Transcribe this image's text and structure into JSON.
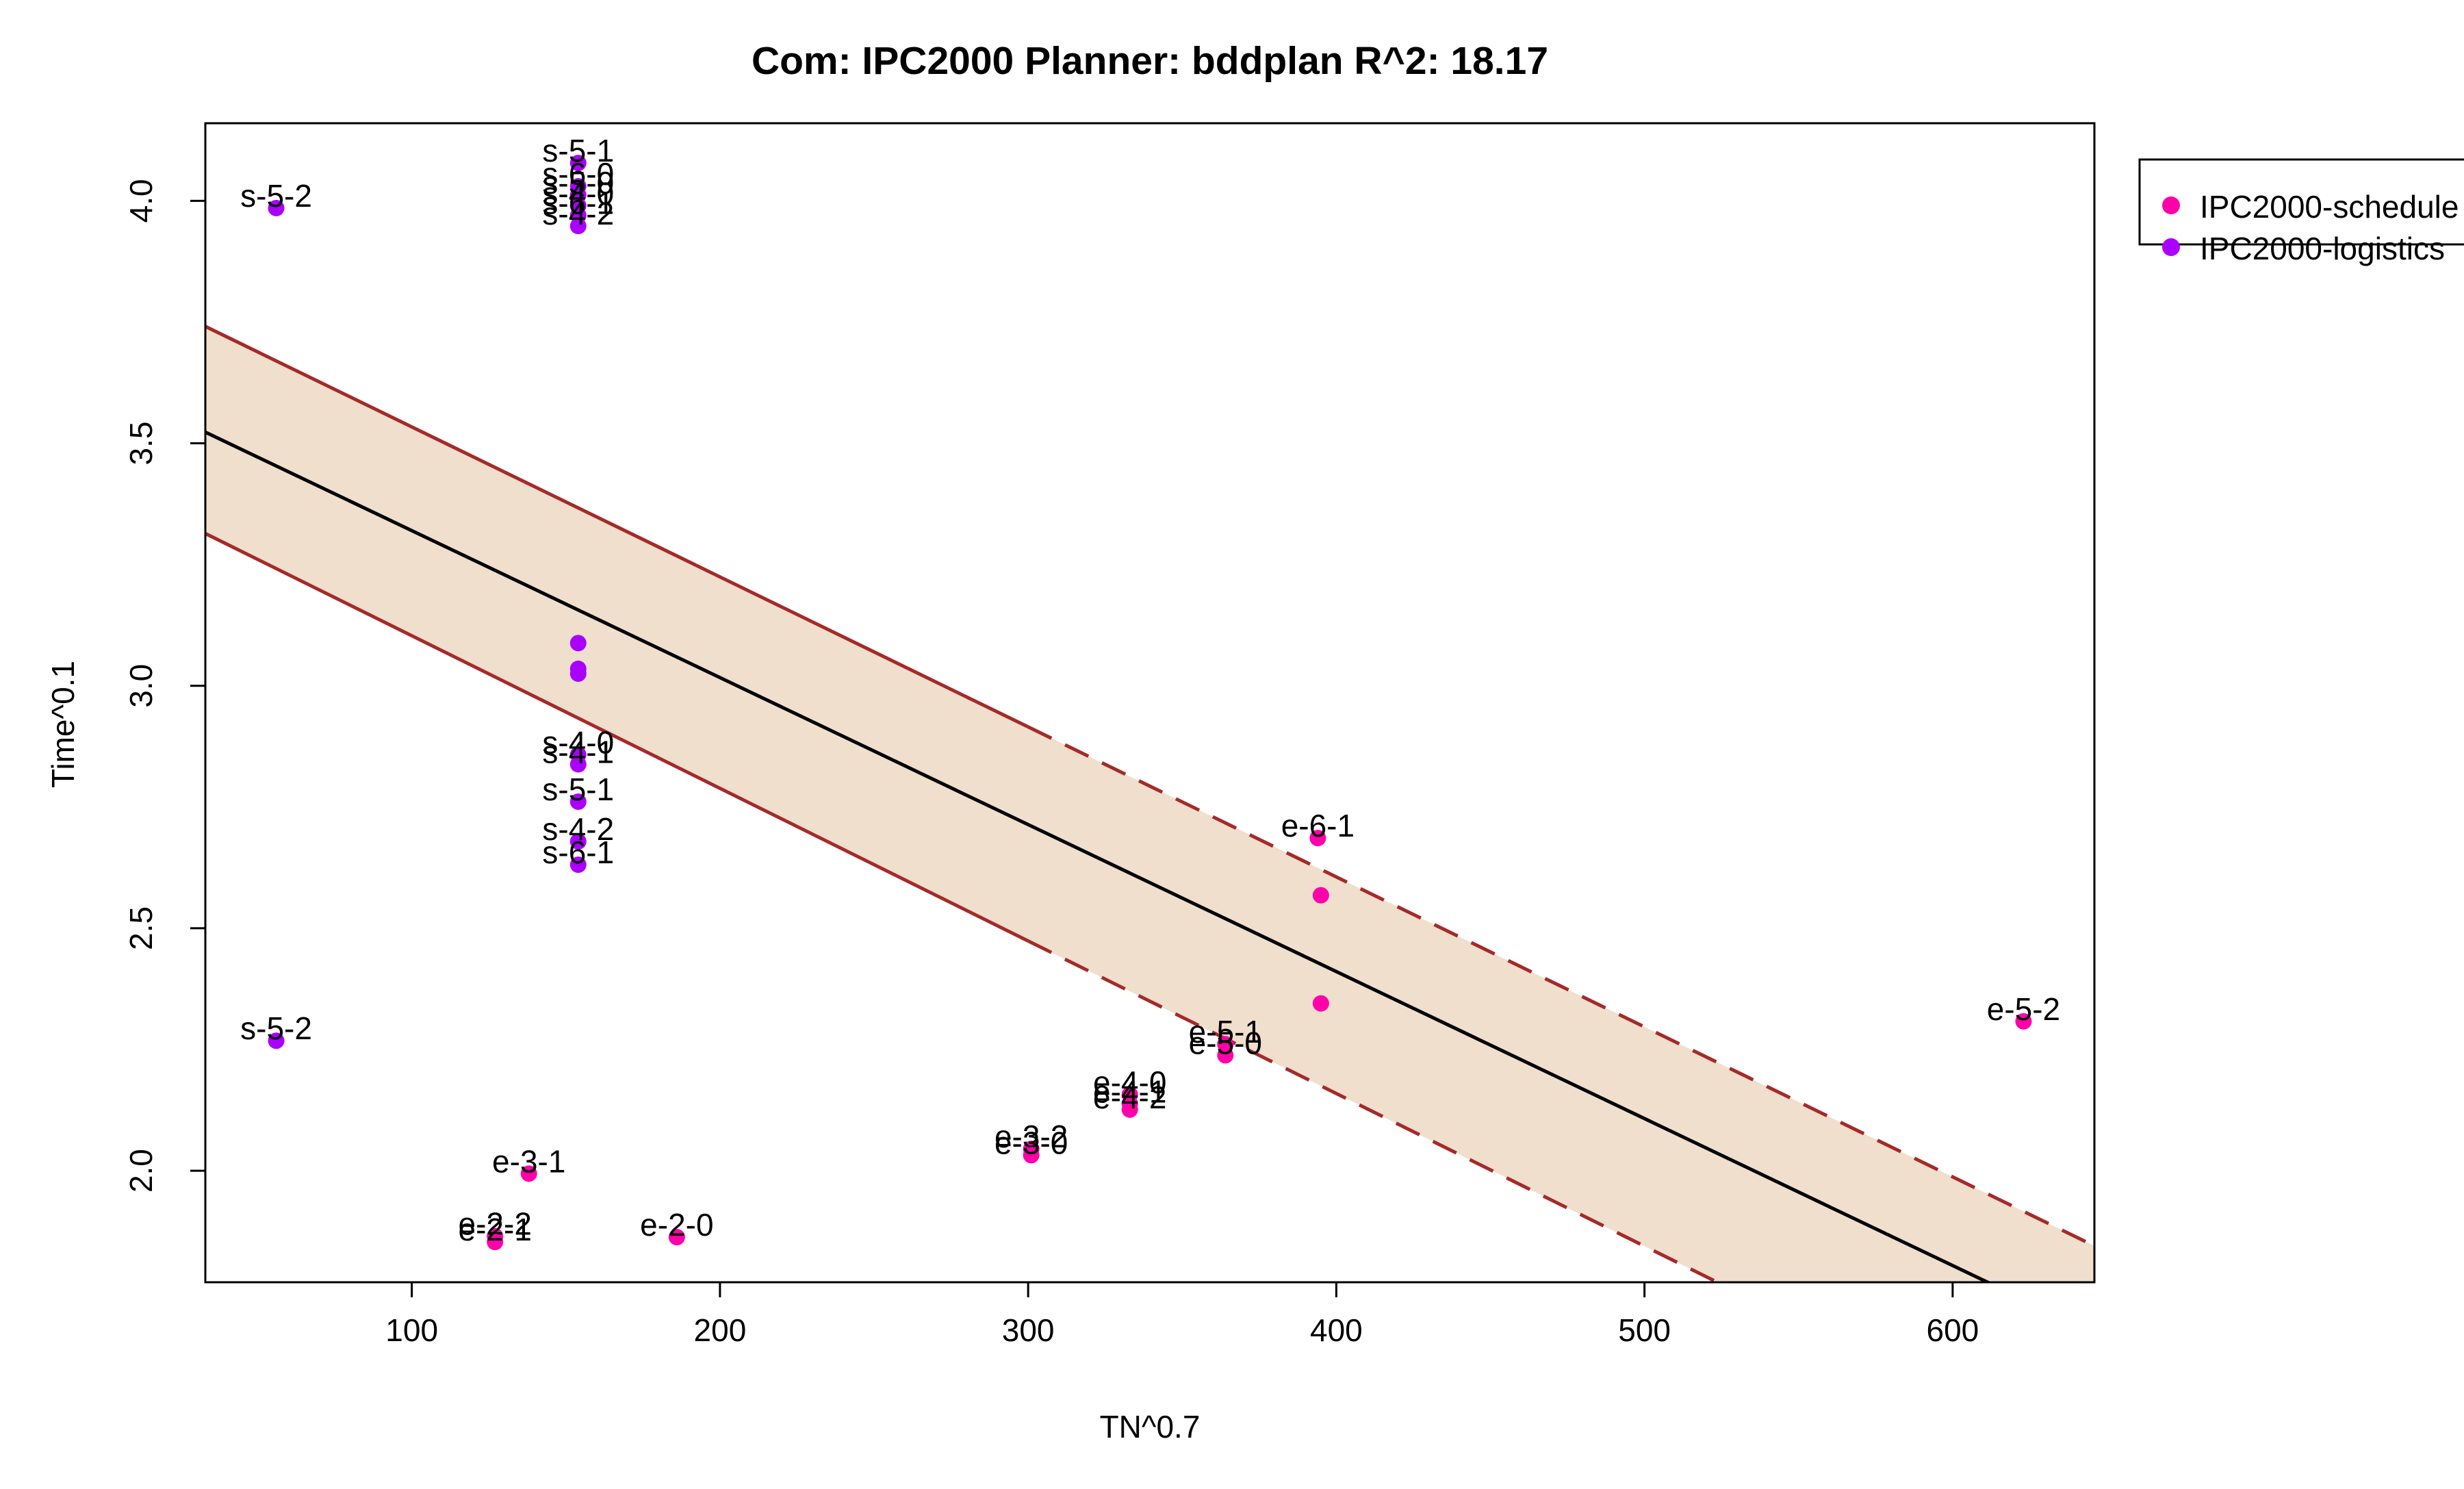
{
  "chart_data": {
    "type": "scatter",
    "title": "Com: IPC2000 Planner: bddplan R^2: 18.17",
    "xlabel": "TN^0.7",
    "ylabel": "Time^0.1",
    "xlim": [
      33,
      646
    ],
    "ylim": [
      1.77,
      4.16
    ],
    "x_ticks": [
      100,
      200,
      300,
      400,
      500,
      600
    ],
    "y_ticks": [
      2.0,
      2.5,
      3.0,
      3.5,
      4.0
    ],
    "grid": false,
    "legend_position": "top-right",
    "colors": {
      "schedule": "#ff00aa",
      "logistics": "#aa00ff",
      "band_fill": "#efdfcc",
      "band_line": "#a52a2a",
      "fit_line": "#000000"
    },
    "fit": {
      "center": [
        [
          33,
          3.523
        ],
        [
          646,
          1.665
        ]
      ],
      "upper": [
        [
          33,
          3.741
        ],
        [
          646,
          1.845
        ]
      ],
      "lower": [
        [
          33,
          3.314
        ],
        [
          646,
          1.385
        ]
      ],
      "solid_until_x": 300
    },
    "series": [
      {
        "name": "IPC2000-schedule",
        "color": "#ff00aa",
        "points": [
          {
            "x": 394,
            "y": 2.686,
            "label": "e-6-1"
          },
          {
            "x": 395,
            "y": 2.568,
            "label": ""
          },
          {
            "x": 395,
            "y": 2.345,
            "label": ""
          },
          {
            "x": 623,
            "y": 2.308,
            "label": "e-5-2"
          },
          {
            "x": 364,
            "y": 2.261,
            "label": "e-5-1"
          },
          {
            "x": 364,
            "y": 2.238,
            "label": "e-5-0"
          },
          {
            "x": 333,
            "y": 2.157,
            "label": "e-4-0"
          },
          {
            "x": 333,
            "y": 2.138,
            "label": "e-4-1"
          },
          {
            "x": 333,
            "y": 2.126,
            "label": "e-4-2"
          },
          {
            "x": 301,
            "y": 2.045,
            "label": "e-3-2"
          },
          {
            "x": 301,
            "y": 2.032,
            "label": "e-3-0"
          },
          {
            "x": 138,
            "y": 1.994,
            "label": "e-3-1"
          },
          {
            "x": 127,
            "y": 1.865,
            "label": "e-2-2"
          },
          {
            "x": 127,
            "y": 1.853,
            "label": "e-2-1"
          },
          {
            "x": 186,
            "y": 1.863,
            "label": "e-2-0"
          }
        ]
      },
      {
        "name": "IPC2000-logistics",
        "color": "#aa00ff",
        "points": [
          {
            "x": 154,
            "y": 4.078,
            "label": "s-5-1"
          },
          {
            "x": 154,
            "y": 4.03,
            "label": "s-6-0"
          },
          {
            "x": 154,
            "y": 4.012,
            "label": "s-5-0"
          },
          {
            "x": 154,
            "y": 3.99,
            "label": "s-4-0"
          },
          {
            "x": 154,
            "y": 3.97,
            "label": "s-6-1"
          },
          {
            "x": 154,
            "y": 3.948,
            "label": "s-4-2"
          },
          {
            "x": 56,
            "y": 3.985,
            "label": "s-5-2"
          },
          {
            "x": 154,
            "y": 3.088,
            "label": ""
          },
          {
            "x": 154,
            "y": 3.035,
            "label": ""
          },
          {
            "x": 154,
            "y": 3.025,
            "label": ""
          },
          {
            "x": 154,
            "y": 2.858,
            "label": "s-4-0"
          },
          {
            "x": 154,
            "y": 2.838,
            "label": "s-4-1"
          },
          {
            "x": 154,
            "y": 2.761,
            "label": "s-5-1"
          },
          {
            "x": 154,
            "y": 2.679,
            "label": "s-4-2"
          },
          {
            "x": 154,
            "y": 2.631,
            "label": "s-6-1"
          },
          {
            "x": 56,
            "y": 2.268,
            "label": "s-5-2"
          }
        ]
      }
    ]
  }
}
